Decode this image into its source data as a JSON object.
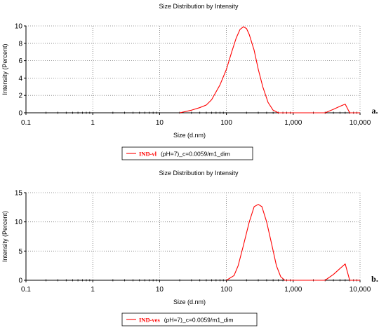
{
  "chart_data": [
    {
      "type": "line",
      "panel": "a.",
      "title": "Size Distribution by Intensity",
      "xlabel": "Size (d.nm)",
      "ylabel": "Intensity (Percent)",
      "xscale": "log",
      "xlim": [
        0.1,
        10000
      ],
      "ylim": [
        0,
        10
      ],
      "xticks": [
        0.1,
        1,
        10,
        100,
        1000,
        10000
      ],
      "xtick_labels": [
        "0.1",
        "1",
        "10",
        "100",
        "1,000",
        "10,000"
      ],
      "yticks": [
        0,
        2,
        4,
        6,
        8,
        10
      ],
      "ytick_labels": [
        "0",
        "2",
        "4",
        "6",
        "8",
        "10"
      ],
      "grid": true,
      "legend": {
        "position": "bottom-left",
        "marker_text": "IND-vl",
        "text": "(pH=7)_c=0.0059/m1_dim"
      },
      "series": [
        {
          "name": "IND-vl (pH=7)_c=0.0059/m1_dim",
          "color": "#ff0000",
          "points": [
            [
              20,
              0
            ],
            [
              30,
              0.3
            ],
            [
              40,
              0.6
            ],
            [
              50,
              0.9
            ],
            [
              60,
              1.5
            ],
            [
              80,
              3.2
            ],
            [
              100,
              5.0
            ],
            [
              120,
              7.0
            ],
            [
              140,
              8.6
            ],
            [
              160,
              9.6
            ],
            [
              180,
              9.9
            ],
            [
              200,
              9.7
            ],
            [
              220,
              9.0
            ],
            [
              260,
              7.2
            ],
            [
              300,
              5.0
            ],
            [
              350,
              3.0
            ],
            [
              420,
              1.2
            ],
            [
              500,
              0.3
            ],
            [
              600,
              0
            ],
            [
              3000,
              0
            ],
            [
              4000,
              0.4
            ],
            [
              5000,
              0.75
            ],
            [
              6000,
              1.0
            ],
            [
              7000,
              0
            ],
            [
              10000,
              0
            ]
          ]
        }
      ]
    },
    {
      "type": "line",
      "panel": "b.",
      "title": "Size Distribution by Intensity",
      "xlabel": "Size (d.nm)",
      "ylabel": "Intensity (Percent)",
      "xscale": "log",
      "xlim": [
        0.1,
        10000
      ],
      "ylim": [
        0,
        15
      ],
      "xticks": [
        0.1,
        1,
        10,
        100,
        1000,
        10000
      ],
      "xtick_labels": [
        "0.1",
        "1",
        "10",
        "100",
        "1,000",
        "10,000"
      ],
      "yticks": [
        0,
        5,
        10,
        15
      ],
      "ytick_labels": [
        "0",
        "5",
        "10",
        "15"
      ],
      "grid": true,
      "legend": {
        "position": "bottom-left",
        "marker_text": "IND-ves",
        "text": "(pH=7)_c=0.0059/m1_dim"
      },
      "series": [
        {
          "name": "IND-ves (pH=7)_c=0.0059/m1_dim",
          "color": "#ff0000",
          "points": [
            [
              100,
              0
            ],
            [
              130,
              0.8
            ],
            [
              150,
              2.5
            ],
            [
              180,
              6.0
            ],
            [
              220,
              10.0
            ],
            [
              260,
              12.6
            ],
            [
              300,
              13.0
            ],
            [
              340,
              12.6
            ],
            [
              400,
              10.0
            ],
            [
              480,
              6.0
            ],
            [
              560,
              2.5
            ],
            [
              650,
              0.6
            ],
            [
              750,
              0
            ],
            [
              3000,
              0
            ],
            [
              4000,
              1.0
            ],
            [
              5000,
              2.0
            ],
            [
              6000,
              2.8
            ],
            [
              7000,
              0
            ],
            [
              10000,
              0
            ]
          ]
        }
      ]
    }
  ]
}
